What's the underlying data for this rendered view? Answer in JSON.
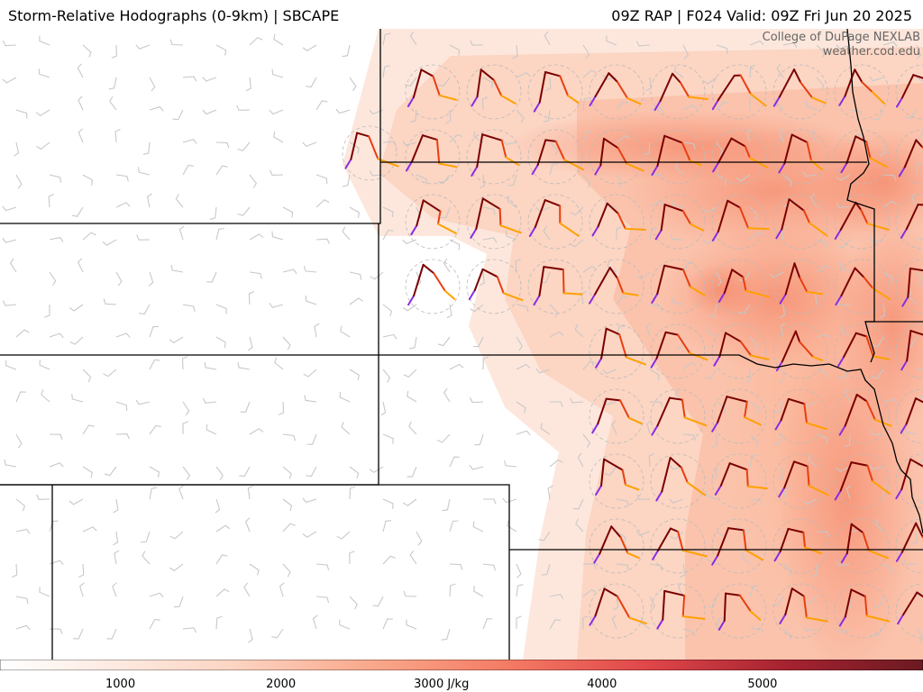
{
  "header": {
    "title": "Storm-Relative Hodographs (0-9km) | SBCAPE",
    "valid": "09Z RAP | F024 Valid: 09Z Fri Jun 20 2025"
  },
  "credit": {
    "org": "College of DuPage NEXLAB",
    "site": "weather.cod.edu"
  },
  "colorbar": {
    "unit": "J/kg",
    "ticks": [
      {
        "value": 1000,
        "label": "1000"
      },
      {
        "value": 2000,
        "label": "2000"
      },
      {
        "value": 3000,
        "label": "3000 J/kg"
      },
      {
        "value": 4000,
        "label": "4000"
      },
      {
        "value": 5000,
        "label": "5000"
      }
    ],
    "range": [
      250,
      6000
    ],
    "colors": [
      "#ffffff",
      "#fde0d2",
      "#fbb89b",
      "#f58a6c",
      "#e8554a",
      "#c33338",
      "#8a1a24",
      "#6b1a22"
    ]
  },
  "hodograph_colors": {
    "layer_0_3km": "#7a0000",
    "layer_3_6km": "#e83e10",
    "layer_6_9km": "#ffa000",
    "layer_low": "#8a2be2"
  }
}
